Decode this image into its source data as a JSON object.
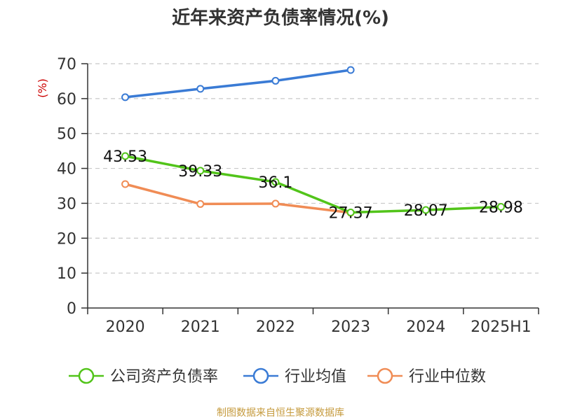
{
  "chart_data": {
    "type": "line",
    "title": "近年来资产负债率情况(%)",
    "ylabel": "(%)",
    "xlabel": "",
    "categories": [
      "2020",
      "2021",
      "2022",
      "2023",
      "2024",
      "2025H1"
    ],
    "ylim": [
      0,
      70
    ],
    "yticks": [
      0,
      10,
      20,
      30,
      40,
      50,
      60,
      70
    ],
    "grid": true,
    "legend_position": "bottom",
    "series": [
      {
        "name": "公司资产负债率",
        "color": "#52c41a",
        "values": [
          43.53,
          39.33,
          36.1,
          27.37,
          28.07,
          28.98
        ],
        "labels": [
          "43.53",
          "39.33",
          "36.1",
          "27.37",
          "28.07",
          "28.98"
        ]
      },
      {
        "name": "行业均值",
        "color": "#3a7bd5",
        "values": [
          60.4,
          62.8,
          65.1,
          68.2,
          null,
          null
        ]
      },
      {
        "name": "行业中位数",
        "color": "#f08c55",
        "values": [
          35.5,
          29.8,
          29.9,
          27.3,
          null,
          null
        ]
      }
    ],
    "source": "制图数据来自恒生聚源数据库"
  }
}
